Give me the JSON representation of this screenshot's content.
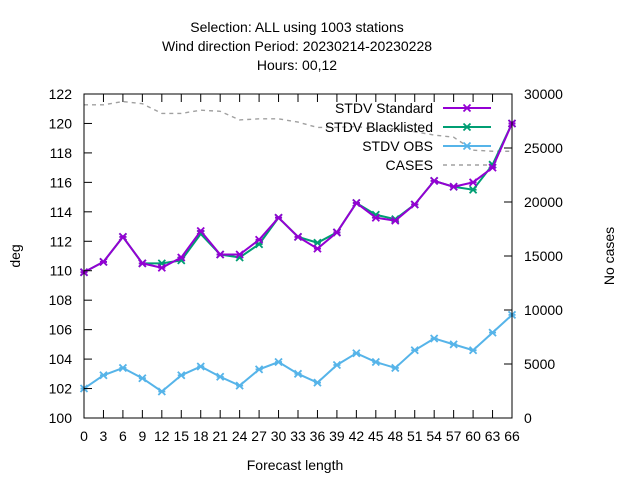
{
  "chart_data": {
    "type": "line",
    "title_lines": [
      "Selection: ALL using  1003 stations",
      "Wind direction   Period: 20230214-20230228",
      "Hours:  00,12"
    ],
    "xlabel": "Forecast length",
    "ylabel": "deg",
    "y2label": "No cases",
    "x": [
      0,
      3,
      6,
      9,
      12,
      15,
      18,
      21,
      24,
      27,
      30,
      33,
      36,
      39,
      42,
      45,
      48,
      51,
      54,
      57,
      60,
      63,
      66
    ],
    "x_tick_labels": [
      "0",
      "3",
      "6",
      "9",
      "12",
      "15",
      "18",
      "21",
      "24",
      "27",
      "30",
      "33",
      "36",
      "39",
      "42",
      "45",
      "48",
      "51",
      "54",
      "57",
      "60",
      "63",
      "66"
    ],
    "ylim": [
      100,
      122
    ],
    "y_ticks": [
      100,
      102,
      104,
      106,
      108,
      110,
      112,
      114,
      116,
      118,
      120,
      122
    ],
    "y2lim": [
      0,
      30000
    ],
    "y2_ticks": [
      0,
      5000,
      10000,
      15000,
      20000,
      25000,
      30000
    ],
    "grid": false,
    "legend_position": "top-right",
    "series": [
      {
        "name": "STDV Standard",
        "axis": "y",
        "color": "#9400d3",
        "marker": "x",
        "values": [
          109.9,
          110.6,
          112.3,
          110.5,
          110.2,
          110.9,
          112.7,
          111.1,
          111.1,
          112.1,
          113.6,
          112.3,
          111.5,
          112.6,
          114.6,
          113.6,
          113.4,
          114.5,
          116.1,
          115.7,
          116.0,
          117.0,
          120.0
        ]
      },
      {
        "name": "STDV Blacklisted",
        "axis": "y",
        "color": "#009e73",
        "marker": "x",
        "values": [
          109.9,
          110.6,
          112.3,
          110.5,
          110.5,
          110.7,
          112.5,
          111.1,
          110.9,
          111.8,
          113.6,
          112.3,
          111.9,
          112.6,
          114.6,
          113.8,
          113.5,
          114.5,
          116.1,
          115.7,
          115.5,
          117.2,
          120.0
        ]
      },
      {
        "name": "STDV OBS",
        "axis": "y",
        "color": "#56b4e9",
        "marker": "x",
        "values": [
          102.0,
          102.9,
          103.4,
          102.7,
          101.8,
          102.9,
          103.5,
          102.8,
          102.2,
          103.3,
          103.8,
          103.0,
          102.4,
          103.6,
          104.4,
          103.8,
          103.4,
          104.6,
          105.4,
          105.0,
          104.6,
          105.8,
          107.0
        ]
      },
      {
        "name": "CASES",
        "axis": "y2",
        "color": "#a0a0a0",
        "dashed": true,
        "values": [
          29000,
          29000,
          29300,
          29100,
          28200,
          28200,
          28500,
          28400,
          27600,
          27700,
          27700,
          27400,
          26900,
          26900,
          27000,
          26700,
          26800,
          26500,
          26200,
          26000,
          24800,
          24700,
          24700
        ]
      }
    ]
  }
}
